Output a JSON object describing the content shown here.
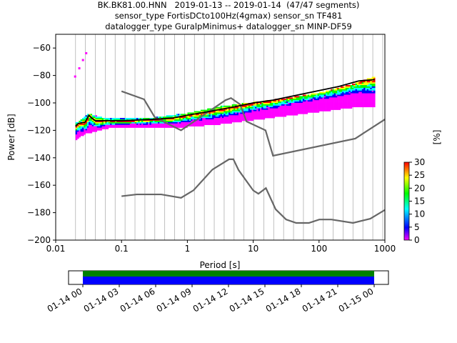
{
  "title": {
    "line1": "BK.BK81.00.HNN   2019-01-13 -- 2019-01-14  (47/47 segments)",
    "line2": "sensor_type FortisDCto100Hz(4gmax) sensor_sn TF481",
    "line3": "datalogger_type GuralpMinimus+ datalogger_sn MINP-DF59"
  },
  "chart_data": [
    {
      "type": "heatmap",
      "xlabel": "Period [s]",
      "ylabel": "Power [dB]",
      "xscale": "log",
      "xlim": [
        0.01,
        1000
      ],
      "ylim": [
        -200,
        -50
      ],
      "x_ticks": [
        "0.01",
        "0.1",
        "1",
        "10",
        "100",
        "1000"
      ],
      "y_ticks": [
        "−60",
        "−80",
        "−100",
        "−120",
        "−140",
        "−160",
        "−180",
        "−200"
      ],
      "grid": "vertical lines at period bins",
      "colorbar": {
        "label": "[%]",
        "min": 0,
        "max": 30,
        "ticks": [
          "0",
          "5",
          "10",
          "15",
          "20",
          "25",
          "30"
        ],
        "colormap": [
          "#ff00ff",
          "#0000ff",
          "#00ffff",
          "#00ff00",
          "#ffff00",
          "#ff0000"
        ]
      },
      "noise_models": {
        "color": "#666666",
        "nhnm": {
          "x": [
            0.1,
            0.22,
            0.32,
            0.8,
            3.8,
            4.6,
            6.3,
            7.9,
            15.4,
            20,
            354.8,
            1000
          ],
          "y": [
            -91.5,
            -97.4,
            -110.5,
            -120,
            -98,
            -96.5,
            -101,
            -113.5,
            -120,
            -138.5,
            -126,
            -112
          ]
        },
        "nlnm": {
          "x": [
            0.1,
            0.17,
            0.4,
            0.8,
            1.24,
            2.4,
            4.3,
            5,
            6,
            10,
            12,
            15.6,
            21.9,
            31.6,
            45,
            70,
            101,
            154,
            328,
            600,
            1000
          ],
          "y": [
            -168,
            -166.7,
            -166.7,
            -169.2,
            -163.7,
            -148.6,
            -141.1,
            -141.1,
            -149,
            -163.8,
            -166.2,
            -162.1,
            -177.5,
            -185,
            -187.5,
            -187.5,
            -185,
            -185,
            -187.5,
            -184.4,
            -178
          ]
        }
      },
      "median_curve": {
        "color": "#000000",
        "x": [
          0.02,
          0.022,
          0.028,
          0.032,
          0.035,
          0.04,
          0.06,
          0.1,
          0.3,
          0.6,
          1,
          2,
          5,
          10,
          20,
          50,
          100,
          200,
          400,
          700
        ],
        "y": [
          -117,
          -115,
          -114,
          -109,
          -111,
          -113,
          -113,
          -113,
          -112,
          -111,
          -109,
          -106.5,
          -103,
          -100,
          -98,
          -94,
          -91,
          -88,
          -84,
          -83
        ]
      },
      "psd_bands": {
        "x": [
          0.02,
          0.03,
          0.035,
          0.06,
          0.1,
          0.3,
          1,
          3,
          10,
          30,
          100,
          300,
          700
        ],
        "y_low": [
          -126,
          -121,
          -121,
          -118,
          -117,
          -117,
          -117,
          -115,
          -112,
          -109,
          -106,
          -103,
          -102
        ],
        "y_high": [
          -114,
          -107,
          -108,
          -111,
          -111,
          -110,
          -107,
          -102,
          -99,
          -96,
          -92,
          -86,
          -80
        ]
      },
      "sparse_highs": {
        "x": [
          0.019,
          0.022,
          0.025,
          0.028
        ],
        "y": [
          -80,
          -74,
          -68,
          -63
        ]
      }
    },
    {
      "type": "timeline",
      "x_ticks": [
        "01-14 00",
        "01-14 03",
        "01-14 06",
        "01-14 09",
        "01-14 12",
        "01-14 15",
        "01-14 18",
        "01-14 21",
        "01-15 00"
      ],
      "coverage_fraction": [
        0,
        1
      ],
      "colors": {
        "data": "#0000ff",
        "gaps": "#008000"
      }
    }
  ]
}
